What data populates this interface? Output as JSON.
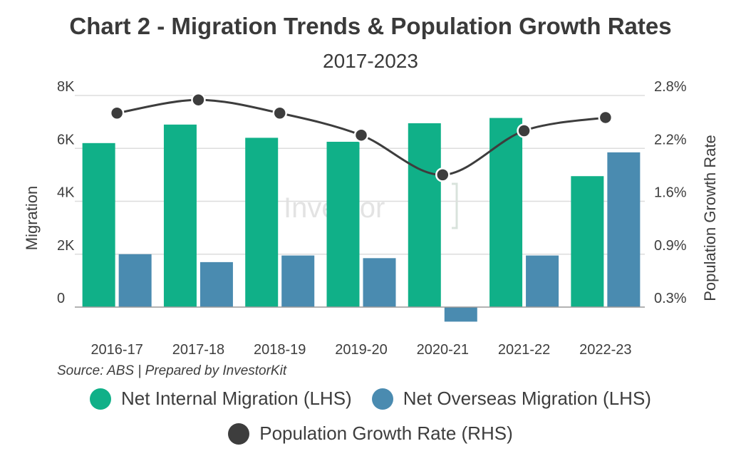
{
  "chart_data": {
    "type": "bar",
    "title": "Chart 2 - Migration Trends & Population Growth Rates",
    "subtitle": "2017-2023",
    "categories": [
      "2016-17",
      "2017-18",
      "2018-19",
      "2019-20",
      "2020-21",
      "2021-22",
      "2022-23"
    ],
    "series": [
      {
        "name": "Net Internal Migration (LHS)",
        "color": "#10b088",
        "axis": "left",
        "kind": "bar",
        "values": [
          6200,
          6900,
          6400,
          6250,
          6950,
          7150,
          4950
        ]
      },
      {
        "name": "Net Overseas Migration (LHS)",
        "color": "#4a8bb0",
        "axis": "left",
        "kind": "bar",
        "values": [
          2000,
          1700,
          1950,
          1850,
          -550,
          1950,
          5850
        ]
      },
      {
        "name": "Population Growth Rate (RHS)",
        "color": "#3d3d3d",
        "axis": "right",
        "kind": "line",
        "values": [
          2.6,
          2.75,
          2.6,
          2.35,
          1.9,
          2.4,
          2.55
        ]
      }
    ],
    "left_axis": {
      "label": "Migration",
      "ticks": [
        "0",
        "2K",
        "4K",
        "6K",
        "8K"
      ],
      "tick_values": [
        0,
        2000,
        4000,
        6000,
        8000
      ],
      "ylim": [
        -1150,
        8000
      ]
    },
    "right_axis": {
      "label": "Population Growth Rate",
      "ticks": [
        "0.3%",
        "0.9%",
        "1.6%",
        "2.2%",
        "2.8%"
      ],
      "tick_values": [
        0.3,
        0.9,
        1.6,
        2.2,
        2.8
      ]
    }
  },
  "source": "Source: ABS | Prepared by InvestorKit",
  "watermark": "Investor",
  "legend": [
    {
      "label": "Net Internal Migration (LHS)",
      "color": "#10b088"
    },
    {
      "label": "Net Overseas Migration (LHS)",
      "color": "#4a8bb0"
    },
    {
      "label": "Population Growth Rate (RHS)",
      "color": "#3d3d3d"
    }
  ]
}
